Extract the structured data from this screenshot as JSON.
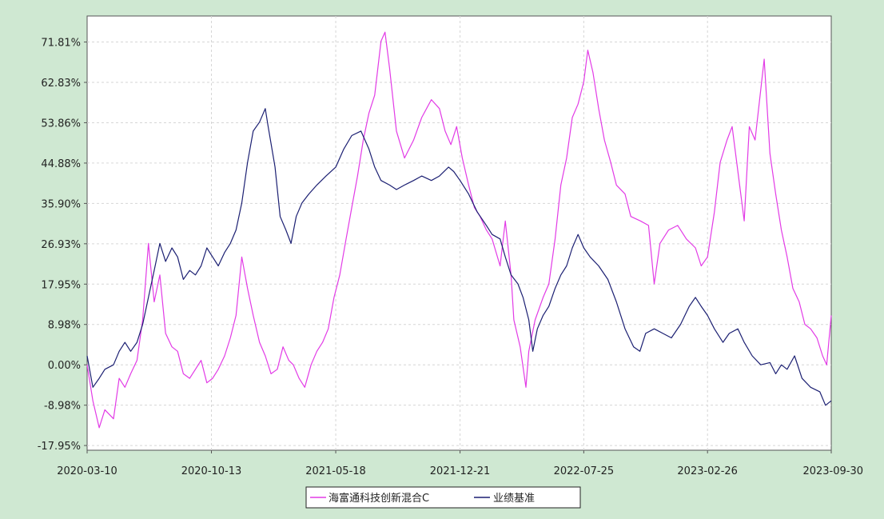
{
  "chart_data": {
    "type": "line",
    "title": "",
    "xlabel": "",
    "ylabel": "",
    "x_ticks": [
      "2020-03-10",
      "2020-10-13",
      "2021-05-18",
      "2021-12-21",
      "2022-07-25",
      "2023-02-26",
      "2023-09-30"
    ],
    "y_ticks": [
      "71.81%",
      "62.83%",
      "53.86%",
      "44.88%",
      "35.90%",
      "26.93%",
      "17.95%",
      "8.98%",
      "0.00%",
      "-8.98%",
      "-17.95%"
    ],
    "ylim": [
      -19.0,
      77.6
    ],
    "grid": true,
    "legend_position": "bottom-center",
    "series": [
      {
        "name": "海富通科技创新混合C",
        "color": "#e23be6",
        "points": [
          [
            "2020-03-10",
            0.0
          ],
          [
            "2020-03-20",
            -8.0
          ],
          [
            "2020-03-31",
            -14.0
          ],
          [
            "2020-04-10",
            -10.0
          ],
          [
            "2020-04-25",
            -12.0
          ],
          [
            "2020-05-05",
            -3.0
          ],
          [
            "2020-05-15",
            -5.0
          ],
          [
            "2020-05-25",
            -2.0
          ],
          [
            "2020-06-05",
            1.0
          ],
          [
            "2020-06-15",
            10.0
          ],
          [
            "2020-06-25",
            27.0
          ],
          [
            "2020-07-05",
            14.0
          ],
          [
            "2020-07-15",
            20.0
          ],
          [
            "2020-07-25",
            7.0
          ],
          [
            "2020-08-05",
            4.0
          ],
          [
            "2020-08-15",
            3.0
          ],
          [
            "2020-08-25",
            -2.0
          ],
          [
            "2020-09-05",
            -3.0
          ],
          [
            "2020-09-15",
            -1.0
          ],
          [
            "2020-09-25",
            1.0
          ],
          [
            "2020-10-05",
            -4.0
          ],
          [
            "2020-10-15",
            -3.0
          ],
          [
            "2020-10-25",
            -1.0
          ],
          [
            "2020-11-05",
            2.0
          ],
          [
            "2020-11-15",
            6.0
          ],
          [
            "2020-11-25",
            11.0
          ],
          [
            "2020-12-05",
            24.0
          ],
          [
            "2020-12-15",
            17.0
          ],
          [
            "2020-12-25",
            11.0
          ],
          [
            "2021-01-05",
            5.0
          ],
          [
            "2021-01-15",
            2.0
          ],
          [
            "2021-01-25",
            -2.0
          ],
          [
            "2021-02-05",
            -1.0
          ],
          [
            "2021-02-15",
            4.0
          ],
          [
            "2021-02-25",
            1.0
          ],
          [
            "2021-03-05",
            0.0
          ],
          [
            "2021-03-15",
            -3.0
          ],
          [
            "2021-03-25",
            -5.0
          ],
          [
            "2021-04-05",
            0.0
          ],
          [
            "2021-04-15",
            3.0
          ],
          [
            "2021-04-25",
            5.0
          ],
          [
            "2021-05-05",
            8.0
          ],
          [
            "2021-05-15",
            15.0
          ],
          [
            "2021-05-25",
            20.0
          ],
          [
            "2021-06-05",
            28.0
          ],
          [
            "2021-06-15",
            35.0
          ],
          [
            "2021-06-25",
            42.0
          ],
          [
            "2021-07-05",
            50.0
          ],
          [
            "2021-07-15",
            56.0
          ],
          [
            "2021-07-25",
            60.0
          ],
          [
            "2021-08-05",
            72.0
          ],
          [
            "2021-08-12",
            74.0
          ],
          [
            "2021-08-20",
            66.0
          ],
          [
            "2021-09-01",
            52.0
          ],
          [
            "2021-09-15",
            46.0
          ],
          [
            "2021-10-01",
            50.0
          ],
          [
            "2021-10-15",
            55.0
          ],
          [
            "2021-11-01",
            59.0
          ],
          [
            "2021-11-15",
            57.0
          ],
          [
            "2021-11-25",
            52.0
          ],
          [
            "2021-12-05",
            49.0
          ],
          [
            "2021-12-15",
            53.0
          ],
          [
            "2021-12-25",
            46.0
          ],
          [
            "2022-01-05",
            40.0
          ],
          [
            "2022-01-15",
            35.0
          ],
          [
            "2022-01-25",
            33.0
          ],
          [
            "2022-02-05",
            30.0
          ],
          [
            "2022-02-15",
            28.0
          ],
          [
            "2022-03-01",
            22.0
          ],
          [
            "2022-03-10",
            32.0
          ],
          [
            "2022-03-20",
            20.0
          ],
          [
            "2022-03-25",
            10.0
          ],
          [
            "2022-04-05",
            4.0
          ],
          [
            "2022-04-15",
            -5.0
          ],
          [
            "2022-04-20",
            3.0
          ],
          [
            "2022-05-01",
            10.0
          ],
          [
            "2022-05-15",
            15.0
          ],
          [
            "2022-05-25",
            18.0
          ],
          [
            "2022-06-05",
            28.0
          ],
          [
            "2022-06-15",
            40.0
          ],
          [
            "2022-06-25",
            46.0
          ],
          [
            "2022-07-05",
            55.0
          ],
          [
            "2022-07-15",
            58.0
          ],
          [
            "2022-07-25",
            63.0
          ],
          [
            "2022-08-01",
            70.0
          ],
          [
            "2022-08-10",
            65.0
          ],
          [
            "2022-08-20",
            57.0
          ],
          [
            "2022-08-30",
            50.0
          ],
          [
            "2022-09-10",
            45.0
          ],
          [
            "2022-09-20",
            40.0
          ],
          [
            "2022-10-05",
            38.0
          ],
          [
            "2022-10-15",
            33.0
          ],
          [
            "2022-11-01",
            32.0
          ],
          [
            "2022-11-15",
            31.0
          ],
          [
            "2022-11-25",
            18.0
          ],
          [
            "2022-12-05",
            27.0
          ],
          [
            "2022-12-20",
            30.0
          ],
          [
            "2023-01-05",
            31.0
          ],
          [
            "2023-01-20",
            28.0
          ],
          [
            "2023-02-05",
            26.0
          ],
          [
            "2023-02-15",
            22.0
          ],
          [
            "2023-02-26",
            24.0
          ],
          [
            "2023-03-10",
            34.0
          ],
          [
            "2023-03-20",
            45.0
          ],
          [
            "2023-04-01",
            50.0
          ],
          [
            "2023-04-10",
            53.0
          ],
          [
            "2023-04-20",
            43.0
          ],
          [
            "2023-05-01",
            32.0
          ],
          [
            "2023-05-10",
            53.0
          ],
          [
            "2023-05-20",
            50.0
          ],
          [
            "2023-06-05",
            68.0
          ],
          [
            "2023-06-15",
            47.0
          ],
          [
            "2023-06-25",
            38.0
          ],
          [
            "2023-07-05",
            30.0
          ],
          [
            "2023-07-15",
            24.0
          ],
          [
            "2023-07-25",
            17.0
          ],
          [
            "2023-08-05",
            14.0
          ],
          [
            "2023-08-15",
            9.0
          ],
          [
            "2023-08-25",
            8.0
          ],
          [
            "2023-09-05",
            6.0
          ],
          [
            "2023-09-15",
            2.0
          ],
          [
            "2023-09-22",
            0.0
          ],
          [
            "2023-09-30",
            11.0
          ]
        ]
      },
      {
        "name": "业绩基准",
        "color": "#1b1f72",
        "points": [
          [
            "2020-03-10",
            2.0
          ],
          [
            "2020-03-20",
            -5.0
          ],
          [
            "2020-03-31",
            -3.0
          ],
          [
            "2020-04-10",
            -1.0
          ],
          [
            "2020-04-25",
            0.0
          ],
          [
            "2020-05-05",
            3.0
          ],
          [
            "2020-05-15",
            5.0
          ],
          [
            "2020-05-25",
            3.0
          ],
          [
            "2020-06-05",
            5.0
          ],
          [
            "2020-06-15",
            9.0
          ],
          [
            "2020-06-25",
            15.0
          ],
          [
            "2020-07-05",
            21.0
          ],
          [
            "2020-07-15",
            27.0
          ],
          [
            "2020-07-25",
            23.0
          ],
          [
            "2020-08-05",
            26.0
          ],
          [
            "2020-08-15",
            24.0
          ],
          [
            "2020-08-25",
            19.0
          ],
          [
            "2020-09-05",
            21.0
          ],
          [
            "2020-09-15",
            20.0
          ],
          [
            "2020-09-25",
            22.0
          ],
          [
            "2020-10-05",
            26.0
          ],
          [
            "2020-10-15",
            24.0
          ],
          [
            "2020-10-25",
            22.0
          ],
          [
            "2020-11-05",
            25.0
          ],
          [
            "2020-11-15",
            27.0
          ],
          [
            "2020-11-25",
            30.0
          ],
          [
            "2020-12-05",
            36.0
          ],
          [
            "2020-12-15",
            45.0
          ],
          [
            "2020-12-25",
            52.0
          ],
          [
            "2021-01-05",
            54.0
          ],
          [
            "2021-01-15",
            57.0
          ],
          [
            "2021-01-20",
            53.0
          ],
          [
            "2021-02-01",
            44.0
          ],
          [
            "2021-02-10",
            33.0
          ],
          [
            "2021-02-20",
            30.0
          ],
          [
            "2021-03-01",
            27.0
          ],
          [
            "2021-03-10",
            33.0
          ],
          [
            "2021-03-20",
            36.0
          ],
          [
            "2021-04-01",
            38.0
          ],
          [
            "2021-04-15",
            40.0
          ],
          [
            "2021-05-01",
            42.0
          ],
          [
            "2021-05-18",
            44.0
          ],
          [
            "2021-06-01",
            48.0
          ],
          [
            "2021-06-15",
            51.0
          ],
          [
            "2021-07-01",
            52.0
          ],
          [
            "2021-07-15",
            48.0
          ],
          [
            "2021-07-25",
            44.0
          ],
          [
            "2021-08-05",
            41.0
          ],
          [
            "2021-08-20",
            40.0
          ],
          [
            "2021-09-01",
            39.0
          ],
          [
            "2021-09-15",
            40.0
          ],
          [
            "2021-10-01",
            41.0
          ],
          [
            "2021-10-15",
            42.0
          ],
          [
            "2021-11-01",
            41.0
          ],
          [
            "2021-11-15",
            42.0
          ],
          [
            "2021-12-01",
            44.0
          ],
          [
            "2021-12-10",
            43.0
          ],
          [
            "2021-12-21",
            41.0
          ],
          [
            "2022-01-05",
            38.0
          ],
          [
            "2022-01-20",
            34.0
          ],
          [
            "2022-02-05",
            31.0
          ],
          [
            "2022-02-15",
            29.0
          ],
          [
            "2022-03-01",
            28.0
          ],
          [
            "2022-03-10",
            24.0
          ],
          [
            "2022-03-20",
            20.0
          ],
          [
            "2022-04-01",
            18.0
          ],
          [
            "2022-04-10",
            15.0
          ],
          [
            "2022-04-20",
            10.0
          ],
          [
            "2022-04-27",
            3.0
          ],
          [
            "2022-05-05",
            8.0
          ],
          [
            "2022-05-15",
            11.0
          ],
          [
            "2022-05-25",
            13.0
          ],
          [
            "2022-06-05",
            17.0
          ],
          [
            "2022-06-15",
            20.0
          ],
          [
            "2022-06-25",
            22.0
          ],
          [
            "2022-07-05",
            26.0
          ],
          [
            "2022-07-15",
            29.0
          ],
          [
            "2022-07-25",
            26.0
          ],
          [
            "2022-08-05",
            24.0
          ],
          [
            "2022-08-20",
            22.0
          ],
          [
            "2022-09-05",
            19.0
          ],
          [
            "2022-09-20",
            14.0
          ],
          [
            "2022-10-05",
            8.0
          ],
          [
            "2022-10-20",
            4.0
          ],
          [
            "2022-10-31",
            3.0
          ],
          [
            "2022-11-10",
            7.0
          ],
          [
            "2022-11-25",
            8.0
          ],
          [
            "2022-12-10",
            7.0
          ],
          [
            "2022-12-25",
            6.0
          ],
          [
            "2023-01-10",
            9.0
          ],
          [
            "2023-01-25",
            13.0
          ],
          [
            "2023-02-05",
            15.0
          ],
          [
            "2023-02-15",
            13.0
          ],
          [
            "2023-02-26",
            11.0
          ],
          [
            "2023-03-10",
            8.0
          ],
          [
            "2023-03-25",
            5.0
          ],
          [
            "2023-04-05",
            7.0
          ],
          [
            "2023-04-20",
            8.0
          ],
          [
            "2023-05-01",
            5.0
          ],
          [
            "2023-05-15",
            2.0
          ],
          [
            "2023-05-30",
            0.0
          ],
          [
            "2023-06-15",
            0.5
          ],
          [
            "2023-06-25",
            -2.0
          ],
          [
            "2023-07-05",
            0.0
          ],
          [
            "2023-07-15",
            -1.0
          ],
          [
            "2023-07-28",
            2.0
          ],
          [
            "2023-08-10",
            -3.0
          ],
          [
            "2023-08-25",
            -5.0
          ],
          [
            "2023-09-10",
            -6.0
          ],
          [
            "2023-09-20",
            -9.0
          ],
          [
            "2023-09-30",
            -8.0
          ]
        ]
      }
    ]
  }
}
